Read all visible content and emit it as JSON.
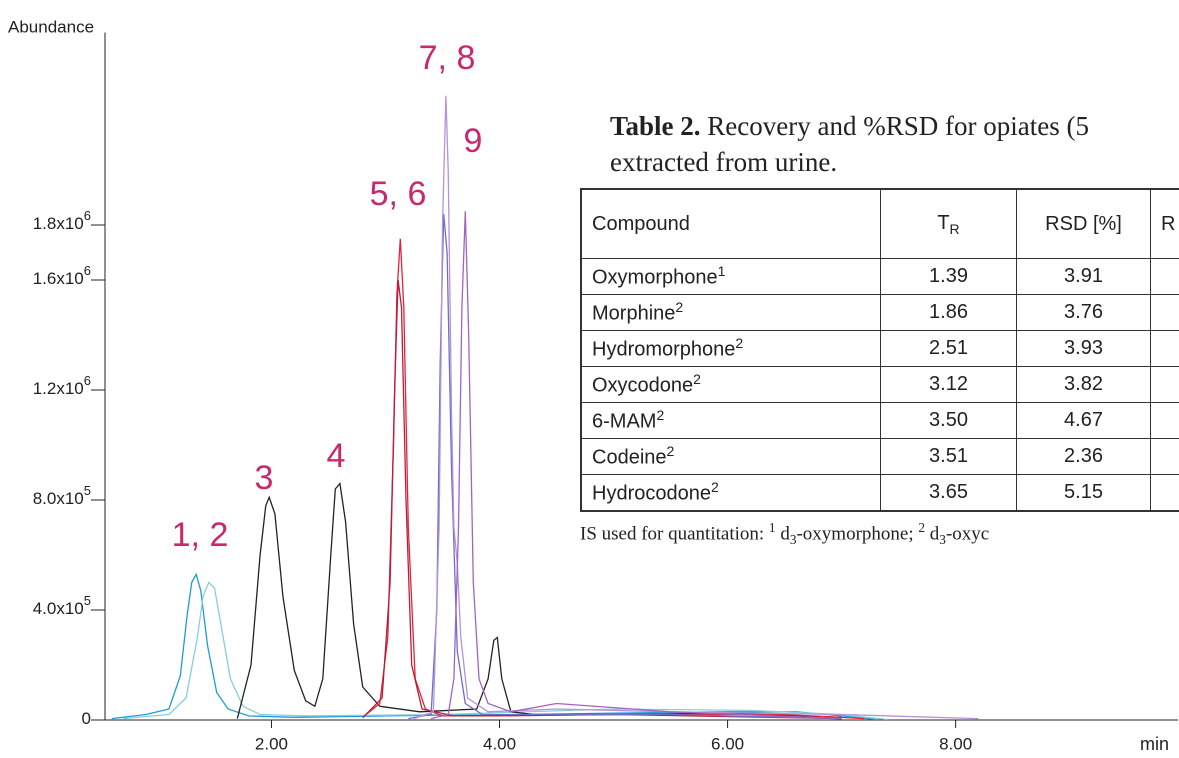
{
  "chart_data": {
    "type": "line",
    "y_label": "Abundance",
    "x_label": "min",
    "xlim": [
      0.54,
      9.95
    ],
    "ylim": [
      0,
      2500000
    ],
    "xticks": [
      {
        "value": 2,
        "label": "2.00"
      },
      {
        "value": 4,
        "label": "4.00"
      },
      {
        "value": 6,
        "label": "6.00"
      },
      {
        "value": 8,
        "label": "8.00"
      }
    ],
    "yticks": [
      0,
      {
        "value": 400000,
        "label": "4.0x10",
        "exponent": "5"
      },
      {
        "value": 800000,
        "label": "8.0x10",
        "exponent": "5"
      },
      {
        "value": 1200000,
        "label": "1.2x10",
        "exponent": "6"
      },
      {
        "value": 1600000,
        "label": "1.6x10",
        "exponent": "6"
      },
      {
        "value": 1800000,
        "label": "1.8x10",
        "exponent": "6"
      }
    ],
    "series": [
      {
        "color": "#1f9bd7",
        "x": [
          0.6,
          0.9,
          1.1,
          1.2,
          1.26,
          1.3,
          1.34,
          1.38,
          1.44,
          1.52,
          1.62,
          1.8,
          2.2,
          3.0,
          4.2,
          5.0,
          6.0,
          6.6,
          7.0,
          7.3
        ],
        "values": [
          5000,
          20000,
          40000,
          160000,
          380000,
          500000,
          530000,
          470000,
          270000,
          100000,
          40000,
          15000,
          10000,
          15000,
          20000,
          25000,
          30000,
          30000,
          15000,
          2000
        ]
      },
      {
        "color": "#86cfd9",
        "x": [
          0.7,
          1.1,
          1.25,
          1.35,
          1.4,
          1.45,
          1.5,
          1.56,
          1.64,
          1.75,
          1.9,
          2.3,
          3.5,
          5.0,
          6.2,
          7.0,
          7.4
        ],
        "values": [
          5000,
          20000,
          80000,
          300000,
          450000,
          500000,
          480000,
          340000,
          150000,
          50000,
          20000,
          15000,
          20000,
          40000,
          35000,
          20000,
          2000
        ]
      },
      {
        "color": "#222222",
        "x": [
          1.7,
          1.82,
          1.9,
          1.95,
          1.98,
          2.03,
          2.1,
          2.2,
          2.3,
          2.38,
          2.45,
          2.52,
          2.56,
          2.6,
          2.65,
          2.72,
          2.8,
          2.95,
          3.3,
          3.8,
          3.9,
          3.95,
          3.98,
          4.02,
          4.1,
          4.3,
          5.0,
          6.0,
          7.0
        ],
        "values": [
          5000,
          200000,
          600000,
          780000,
          810000,
          750000,
          450000,
          180000,
          70000,
          50000,
          150000,
          600000,
          840000,
          860000,
          720000,
          350000,
          120000,
          50000,
          30000,
          40000,
          150000,
          290000,
          300000,
          150000,
          30000,
          20000,
          20000,
          25000,
          10000
        ]
      },
      {
        "color": "#e0243a",
        "x": [
          2.8,
          2.95,
          3.02,
          3.07,
          3.1,
          3.13,
          3.16,
          3.2,
          3.26,
          3.35,
          3.5,
          4.0,
          5.0,
          6.5,
          7.2
        ],
        "values": [
          10000,
          60000,
          300000,
          1000000,
          1550000,
          1750000,
          1500000,
          700000,
          150000,
          40000,
          15000,
          15000,
          20000,
          20000,
          5000
        ]
      },
      {
        "color": "#b51f3b",
        "x": [
          2.8,
          2.97,
          3.04,
          3.08,
          3.11,
          3.14,
          3.18,
          3.23,
          3.32,
          3.6,
          5.0,
          7.0
        ],
        "values": [
          8000,
          80000,
          500000,
          1200000,
          1600000,
          1500000,
          800000,
          200000,
          40000,
          15000,
          20000,
          5000
        ]
      },
      {
        "color": "#6c6ec9",
        "x": [
          3.2,
          3.4,
          3.45,
          3.48,
          3.51,
          3.54,
          3.58,
          3.63,
          3.7,
          3.85,
          4.2,
          5.5,
          7.0
        ],
        "values": [
          5000,
          20000,
          400000,
          1300000,
          1840000,
          1700000,
          900000,
          250000,
          60000,
          20000,
          20000,
          20000,
          5000
        ]
      },
      {
        "color": "#b692d6",
        "x": [
          3.25,
          3.42,
          3.47,
          3.5,
          3.53,
          3.55,
          3.58,
          3.6,
          3.63,
          3.66,
          3.72,
          3.9,
          4.5,
          5.5,
          7.0,
          8.2
        ],
        "values": [
          5000,
          30000,
          700000,
          1800000,
          2270000,
          2000000,
          1100000,
          700000,
          570000,
          300000,
          80000,
          30000,
          40000,
          30000,
          20000,
          5000
        ]
      },
      {
        "color": "#a065bf",
        "x": [
          3.4,
          3.55,
          3.6,
          3.64,
          3.67,
          3.7,
          3.73,
          3.77,
          3.82,
          3.9,
          4.1,
          4.5,
          5.5,
          7.0
        ],
        "values": [
          5000,
          20000,
          150000,
          700000,
          1500000,
          1850000,
          1400000,
          500000,
          150000,
          60000,
          30000,
          60000,
          30000,
          5000
        ]
      }
    ],
    "annotations": [
      "1, 2",
      "3",
      "4",
      "5, 6",
      "7, 8",
      "9"
    ]
  },
  "table": {
    "caption_label": "Table 2.",
    "caption_line1": " Recovery and %RSD for opiates (5",
    "caption_line2": "extracted from urine.",
    "columns": [
      "Compound",
      {
        "text": "T",
        "sub": "R"
      },
      "RSD [%]",
      "R"
    ],
    "rows": [
      [
        {
          "name": "Oxymorphone",
          "sup": "1"
        },
        "1.39",
        "3.91"
      ],
      [
        {
          "name": "Morphine",
          "sup": "2"
        },
        "1.86",
        "3.76"
      ],
      [
        {
          "name": "Hydromorphone",
          "sup": "2"
        },
        "2.51",
        "3.93"
      ],
      [
        {
          "name": "Oxycodone",
          "sup": "2"
        },
        "3.12",
        "3.82"
      ],
      [
        {
          "name": "6-MAM",
          "sup": "2"
        },
        "3.50",
        "4.67"
      ],
      [
        {
          "name": "Codeine",
          "sup": "2"
        },
        "3.51",
        "2.36"
      ],
      [
        {
          "name": "Hydrocodone",
          "sup": "2"
        },
        "3.65",
        "5.15"
      ]
    ],
    "footnote": [
      {
        "text": "IS used for quantitation: ",
        "style": "normal"
      },
      {
        "text": "1",
        "style": "sup"
      },
      {
        "text": " d",
        "style": "normal"
      },
      {
        "text": "3",
        "style": "sub"
      },
      {
        "text": "-oxymorphone; ",
        "style": "normal"
      },
      {
        "text": "2",
        "style": "sup"
      },
      {
        "text": " d",
        "style": "normal"
      },
      {
        "text": "3",
        "style": "sub"
      },
      {
        "text": "-oxyc",
        "style": "normal"
      }
    ]
  }
}
